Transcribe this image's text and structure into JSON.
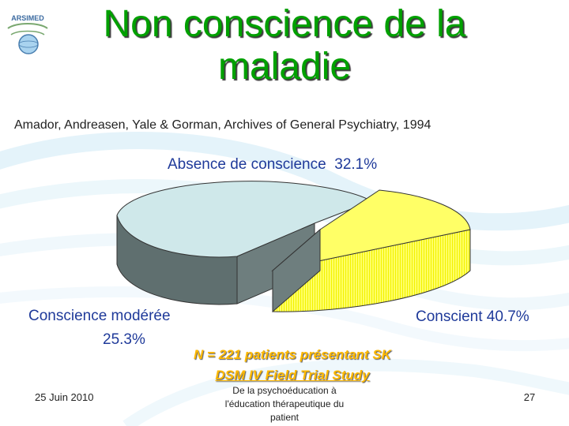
{
  "slide": {
    "title_line1": "Non conscience de la",
    "title_line2": "maladie",
    "citation": "Amador, Andreasen, Yale & Gorman, Archives of General Psychiatry, 1994",
    "study_line1": "N = 221 patients présentant SK",
    "study_line2": "DSM IV Field Trial Study",
    "footer_date": "25 Juin 2010",
    "footer_center_line1": "De la psychoéducation à",
    "footer_center_line2": "l'éducation thérapeutique du",
    "footer_center_line3": "patient",
    "page_number": "27",
    "logo_text": "ARSIMED"
  },
  "chart_data": {
    "type": "pie",
    "title": "",
    "slices": [
      {
        "label": "Absence de conscience",
        "value": 32.1,
        "value_label": "32.1%",
        "color": "#ffff66"
      },
      {
        "label": "Conscient",
        "value": 40.7,
        "value_label": "40.7%",
        "color": "#cfe8ea"
      },
      {
        "label": "Conscience modérée",
        "value": 25.3,
        "value_label": "25.3%",
        "color": "#cfe8ea"
      }
    ],
    "side_color": "#5f6f6f",
    "style": "3d-exploded"
  }
}
